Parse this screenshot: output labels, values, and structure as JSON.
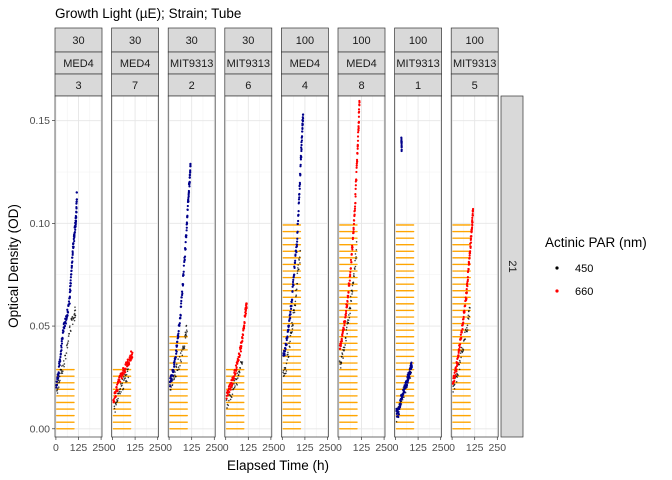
{
  "chart_data": {
    "type": "scatter",
    "title": "Growth Light (µE); Strain; Tube",
    "xlabel": "Elapsed Time (h)",
    "ylabel": "Optical Density (OD)",
    "xlim": [
      -5,
      255
    ],
    "ylim": [
      -0.004,
      0.162
    ],
    "x_ticks": [
      0,
      125,
      250
    ],
    "y_ticks": [
      0.0,
      0.05,
      0.1,
      0.15
    ],
    "x_tick_labels": [
      "0",
      "125",
      "250"
    ],
    "y_tick_labels": [
      "0.00",
      "0.05",
      "0.10",
      "0.15"
    ],
    "grid": true,
    "legend": {
      "title": "Actinic PAR (nm)",
      "position": "right",
      "entries": [
        {
          "label": "450",
          "color": "#000000"
        },
        {
          "label": "660",
          "color": "#ff0000"
        }
      ]
    },
    "colors": {
      "series_450": "#00008b",
      "series_660": "#ff0000",
      "light_profile": "#ffa500",
      "raw_points": "#000000"
    },
    "row_strip": "21",
    "facets": [
      {
        "light": "30",
        "strain": "MED4",
        "tube": "3",
        "par": "450",
        "light_max": 0.03,
        "main": [
          [
            2,
            0.021
          ],
          [
            15,
            0.028
          ],
          [
            30,
            0.04
          ],
          [
            45,
            0.05
          ],
          [
            60,
            0.055
          ],
          [
            75,
            0.062
          ],
          [
            85,
            0.075
          ],
          [
            95,
            0.088
          ],
          [
            105,
            0.097
          ],
          [
            112,
            0.103
          ],
          [
            116,
            0.115
          ]
        ],
        "raw": [
          [
            5,
            0.018
          ],
          [
            20,
            0.025
          ],
          [
            35,
            0.03
          ],
          [
            60,
            0.038
          ],
          [
            80,
            0.05
          ],
          [
            100,
            0.055
          ],
          [
            110,
            0.058
          ]
        ]
      },
      {
        "light": "30",
        "strain": "MED4",
        "tube": "7",
        "par": "660",
        "light_max": 0.03,
        "main": [
          [
            5,
            0.014
          ],
          [
            20,
            0.018
          ],
          [
            40,
            0.024
          ],
          [
            60,
            0.028
          ],
          [
            80,
            0.031
          ],
          [
            95,
            0.034
          ],
          [
            110,
            0.037
          ]
        ],
        "raw": [
          [
            10,
            0.01
          ],
          [
            30,
            0.015
          ],
          [
            50,
            0.02
          ],
          [
            70,
            0.025
          ],
          [
            90,
            0.027
          ]
        ]
      },
      {
        "light": "30",
        "strain": "MIT9313",
        "tube": "2",
        "par": "450",
        "light_max": 0.046,
        "main": [
          [
            5,
            0.022
          ],
          [
            20,
            0.027
          ],
          [
            35,
            0.035
          ],
          [
            50,
            0.045
          ],
          [
            65,
            0.058
          ],
          [
            80,
            0.075
          ],
          [
            95,
            0.095
          ],
          [
            105,
            0.11
          ],
          [
            113,
            0.12
          ],
          [
            118,
            0.129
          ]
        ],
        "raw": [
          [
            5,
            0.02
          ],
          [
            25,
            0.025
          ],
          [
            45,
            0.03
          ],
          [
            70,
            0.035
          ],
          [
            90,
            0.045
          ],
          [
            100,
            0.05
          ]
        ]
      },
      {
        "light": "30",
        "strain": "MIT9313",
        "tube": "6",
        "par": "660",
        "light_max": 0.03,
        "main": [
          [
            5,
            0.016
          ],
          [
            25,
            0.02
          ],
          [
            45,
            0.025
          ],
          [
            65,
            0.032
          ],
          [
            85,
            0.04
          ],
          [
            100,
            0.048
          ],
          [
            110,
            0.057
          ],
          [
            116,
            0.061
          ]
        ],
        "raw": [
          [
            5,
            0.012
          ],
          [
            30,
            0.017
          ],
          [
            55,
            0.022
          ],
          [
            75,
            0.028
          ],
          [
            95,
            0.035
          ]
        ]
      },
      {
        "light": "100",
        "strain": "MED4",
        "tube": "4",
        "par": "450",
        "light_max": 0.1,
        "main": [
          [
            5,
            0.035
          ],
          [
            20,
            0.04
          ],
          [
            35,
            0.05
          ],
          [
            50,
            0.06
          ],
          [
            65,
            0.075
          ],
          [
            80,
            0.09
          ],
          [
            92,
            0.11
          ],
          [
            102,
            0.13
          ],
          [
            110,
            0.145
          ],
          [
            115,
            0.153
          ]
        ],
        "raw": [
          [
            5,
            0.025
          ],
          [
            20,
            0.03
          ],
          [
            40,
            0.04
          ],
          [
            55,
            0.05
          ],
          [
            70,
            0.06
          ],
          [
            85,
            0.075
          ],
          [
            100,
            0.085
          ]
        ]
      },
      {
        "light": "100",
        "strain": "MED4",
        "tube": "8",
        "par": "660",
        "light_max": 0.1,
        "main": [
          [
            5,
            0.04
          ],
          [
            20,
            0.045
          ],
          [
            35,
            0.055
          ],
          [
            50,
            0.065
          ],
          [
            65,
            0.078
          ],
          [
            80,
            0.095
          ],
          [
            90,
            0.11
          ],
          [
            100,
            0.13
          ],
          [
            108,
            0.145
          ],
          [
            114,
            0.159
          ]
        ],
        "raw": [
          [
            5,
            0.03
          ],
          [
            20,
            0.035
          ],
          [
            40,
            0.045
          ],
          [
            55,
            0.055
          ],
          [
            70,
            0.065
          ],
          [
            85,
            0.075
          ],
          [
            100,
            0.09
          ]
        ]
      },
      {
        "light": "100",
        "strain": "MIT9313",
        "tube": "1",
        "par": "450",
        "light_max": 0.1,
        "main": [
          [
            5,
            0.008
          ],
          [
            15,
            0.007
          ],
          [
            30,
            0.014
          ],
          [
            45,
            0.018
          ],
          [
            60,
            0.022
          ],
          [
            70,
            0.025
          ],
          [
            80,
            0.028
          ],
          [
            90,
            0.031
          ],
          [
            33,
            0.14
          ],
          [
            34,
            0.137
          ]
        ],
        "raw": [
          [
            5,
            0.006
          ],
          [
            20,
            0.01
          ],
          [
            35,
            0.015
          ],
          [
            55,
            0.02
          ],
          [
            75,
            0.026
          ],
          [
            90,
            0.03
          ]
        ]
      },
      {
        "light": "100",
        "strain": "MIT9313",
        "tube": "5",
        "par": "660",
        "light_max": 0.1,
        "main": [
          [
            5,
            0.022
          ],
          [
            20,
            0.028
          ],
          [
            35,
            0.036
          ],
          [
            50,
            0.045
          ],
          [
            65,
            0.055
          ],
          [
            80,
            0.066
          ],
          [
            92,
            0.078
          ],
          [
            102,
            0.09
          ],
          [
            110,
            0.098
          ],
          [
            116,
            0.107
          ]
        ],
        "raw": [
          [
            5,
            0.02
          ],
          [
            25,
            0.025
          ],
          [
            45,
            0.033
          ],
          [
            65,
            0.042
          ],
          [
            85,
            0.05
          ],
          [
            100,
            0.06
          ]
        ]
      }
    ]
  }
}
